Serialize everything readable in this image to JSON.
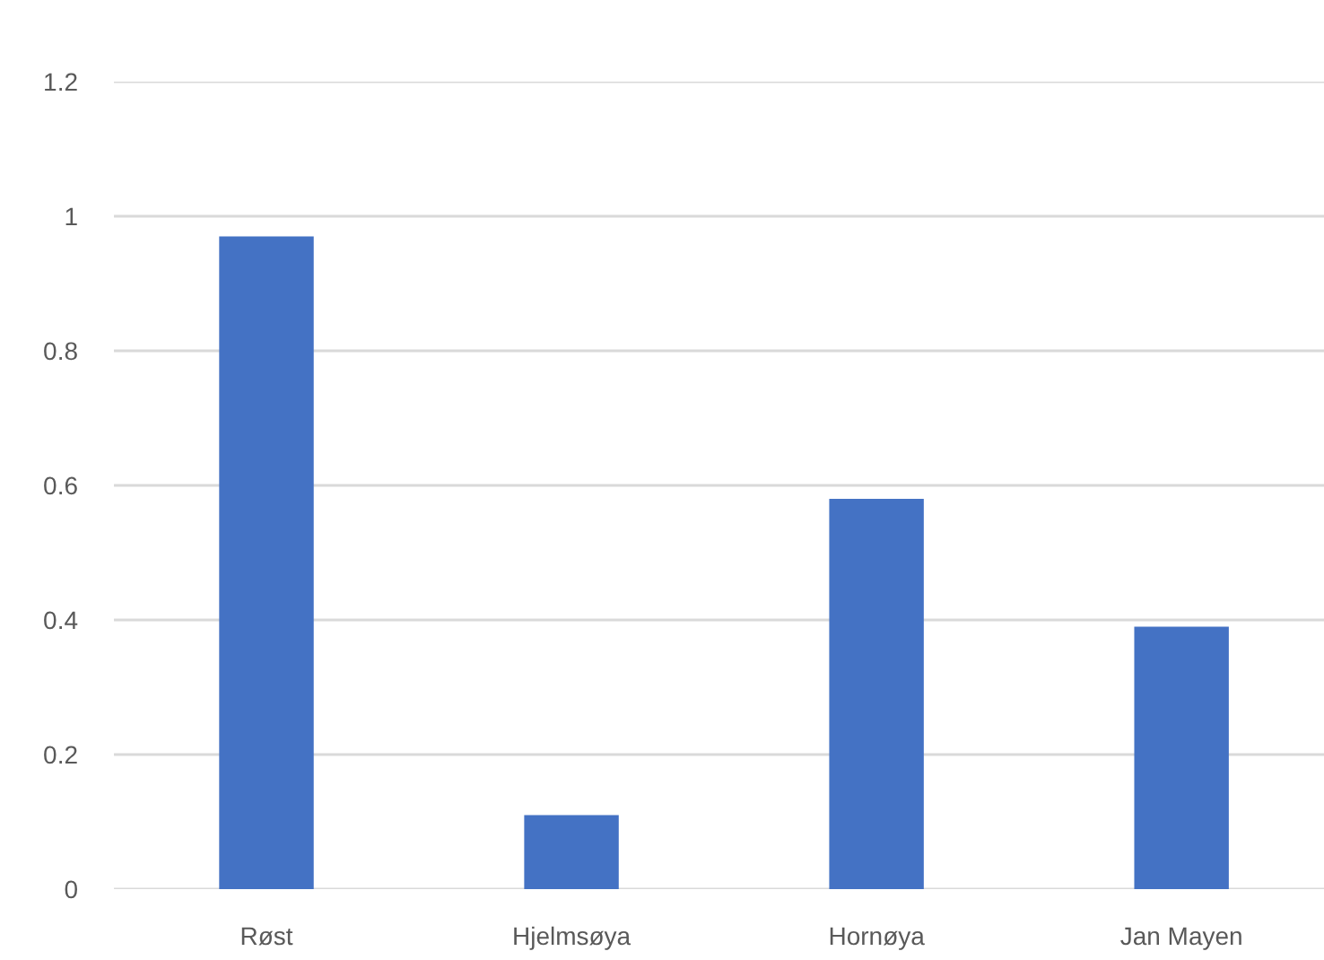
{
  "chart_data": {
    "type": "bar",
    "categories": [
      "Røst",
      "Hjelmsøya",
      "Hornøya",
      "Jan Mayen"
    ],
    "values": [
      0.97,
      0.11,
      0.58,
      0.39
    ],
    "color": "#4472c4",
    "ylim": [
      0,
      1.2
    ],
    "yticks": [
      0,
      0.2,
      0.4,
      0.6,
      0.8,
      1,
      1.2
    ],
    "grid": "y"
  }
}
